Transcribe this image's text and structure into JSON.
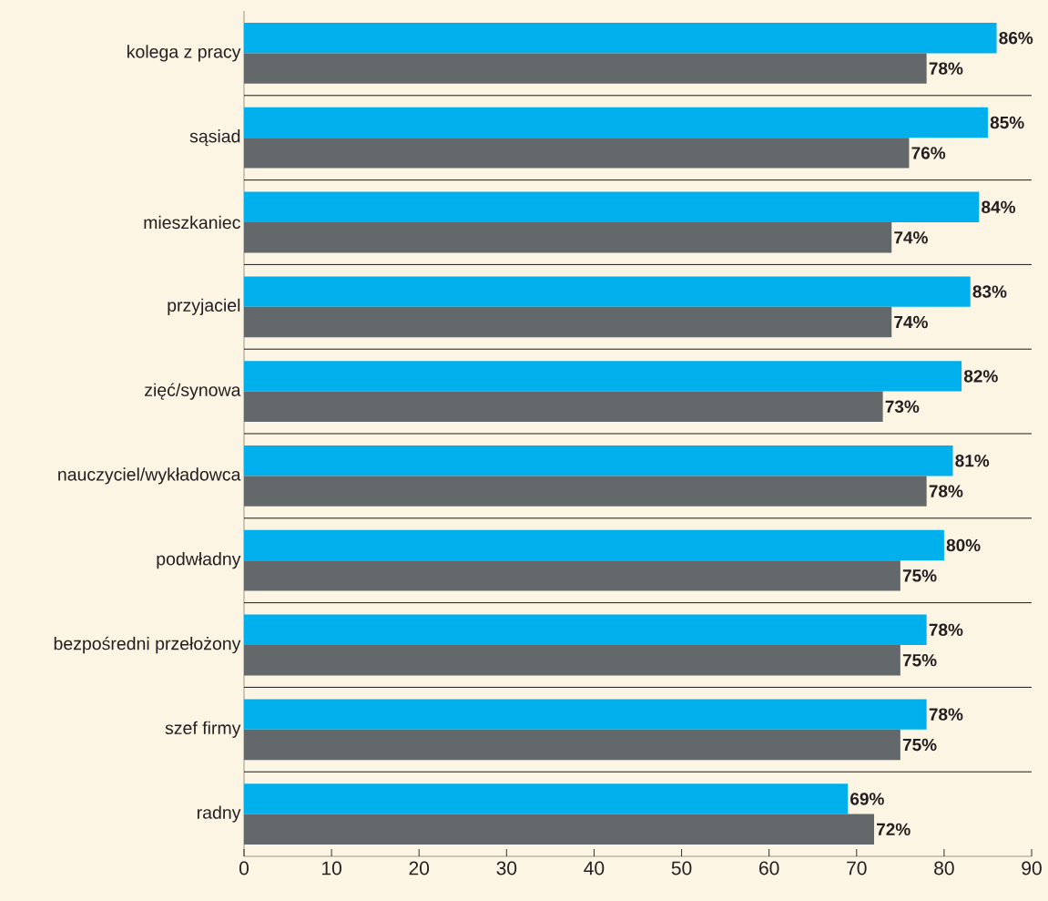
{
  "chart_data": {
    "type": "bar",
    "orientation": "horizontal",
    "categories": [
      "kolega z pracy",
      "sąsiad",
      "mieszkaniec",
      "przyjaciel",
      "zięć/synowa",
      "nauczyciel/wykładowca",
      "podwładny",
      "bezpośredni przełożony",
      "szef firmy",
      "radny"
    ],
    "series": [
      {
        "color": "#00b0ec",
        "values": [
          86,
          85,
          84,
          83,
          82,
          81,
          80,
          78,
          78,
          69
        ],
        "value_labels": [
          "86%",
          "85%",
          "84%",
          "83%",
          "82%",
          "81%",
          "80%",
          "78%",
          "78%",
          "69%"
        ]
      },
      {
        "color": "#63686b",
        "values": [
          78,
          76,
          74,
          74,
          73,
          78,
          75,
          75,
          75,
          72
        ],
        "value_labels": [
          "78%",
          "76%",
          "74%",
          "74%",
          "73%",
          "78%",
          "75%",
          "75%",
          "75%",
          "72%"
        ]
      }
    ],
    "xlim": [
      0,
      90
    ],
    "xticks": [
      0,
      10,
      20,
      30,
      40,
      50,
      60,
      70,
      80,
      90
    ],
    "grid": "y"
  }
}
